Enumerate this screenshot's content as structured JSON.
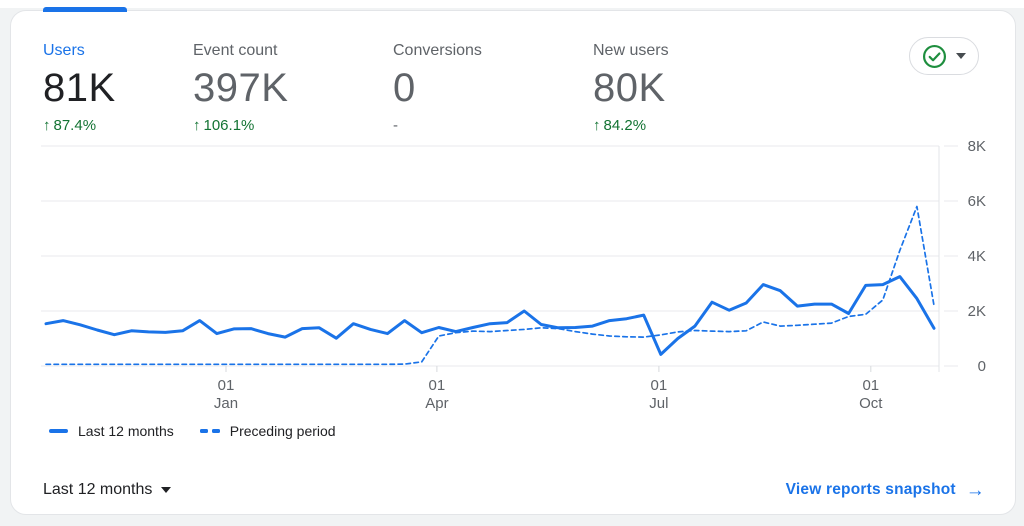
{
  "page": {
    "top_strip_color": "#ffffff",
    "background": "#f1f3f4"
  },
  "card": {
    "metrics": [
      {
        "label": "Users",
        "value": "81K",
        "delta_arrow": "↑",
        "delta": "87.4%",
        "selected": true
      },
      {
        "label": "Event count",
        "value": "397K",
        "delta_arrow": "↑",
        "delta": "106.1%",
        "selected": false
      },
      {
        "label": "Conversions",
        "value": "0",
        "delta_arrow": "",
        "delta": "-",
        "selected": false
      },
      {
        "label": "New users",
        "value": "80K",
        "delta_arrow": "↑",
        "delta": "84.2%",
        "selected": false
      }
    ],
    "status_button": {
      "icon": "check-circle-icon",
      "icon_color": "#1e8e3e",
      "caret": "down"
    },
    "legend": [
      {
        "label": "Last 12 months",
        "style": "solid"
      },
      {
        "label": "Preceding period",
        "style": "dashed"
      }
    ],
    "footer": {
      "date_range": "Last 12 months",
      "link_label": "View reports snapshot",
      "link_arrow": "→"
    }
  },
  "chart_data": {
    "type": "line",
    "metric": "Users",
    "granularity": "weekly",
    "ylim": [
      0,
      8000
    ],
    "grid": "horizontal",
    "legend_position": "bottom-left",
    "y_ticks": [
      {
        "label": "8K",
        "value": 8000
      },
      {
        "label": "6K",
        "value": 6000
      },
      {
        "label": "4K",
        "value": 4000
      },
      {
        "label": "2K",
        "value": 2000
      },
      {
        "label": "0",
        "value": 0
      }
    ],
    "x_ticks": [
      {
        "day": "01",
        "month": "Jan",
        "index": 10.54
      },
      {
        "day": "01",
        "month": "Apr",
        "index": 22.89
      },
      {
        "day": "01",
        "month": "Jul",
        "index": 35.89
      },
      {
        "day": "01",
        "month": "Oct",
        "index": 48.3
      }
    ],
    "series": [
      {
        "name": "Last 12 months",
        "style": "solid",
        "color": "#1a73e8",
        "values": [
          1540,
          1650,
          1500,
          1310,
          1140,
          1280,
          1240,
          1220,
          1280,
          1650,
          1180,
          1350,
          1360,
          1180,
          1050,
          1360,
          1390,
          1010,
          1540,
          1330,
          1180,
          1650,
          1210,
          1400,
          1250,
          1400,
          1540,
          1580,
          2000,
          1510,
          1390,
          1400,
          1450,
          1650,
          1720,
          1850,
          420,
          1000,
          1450,
          2320,
          2030,
          2290,
          2960,
          2740,
          2180,
          2250,
          2250,
          1910,
          2930,
          2960,
          3250,
          2450,
          1370
        ]
      },
      {
        "name": "Preceding period",
        "style": "dashed",
        "color": "#1a73e8",
        "values": [
          60,
          60,
          60,
          60,
          60,
          60,
          60,
          60,
          60,
          60,
          60,
          60,
          60,
          60,
          60,
          60,
          60,
          60,
          60,
          60,
          60,
          70,
          150,
          1090,
          1210,
          1270,
          1250,
          1290,
          1330,
          1390,
          1360,
          1250,
          1160,
          1090,
          1060,
          1050,
          1130,
          1240,
          1290,
          1270,
          1250,
          1280,
          1600,
          1450,
          1480,
          1520,
          1560,
          1800,
          1880,
          2400,
          4200,
          5800,
          2200
        ]
      }
    ]
  },
  "colors": {
    "accent_blue": "#1a73e8",
    "positive_green": "#137333",
    "check_green": "#1e8e3e",
    "text_primary": "#202124",
    "text_secondary": "#5f6368",
    "gridline": "#e8eaed"
  }
}
